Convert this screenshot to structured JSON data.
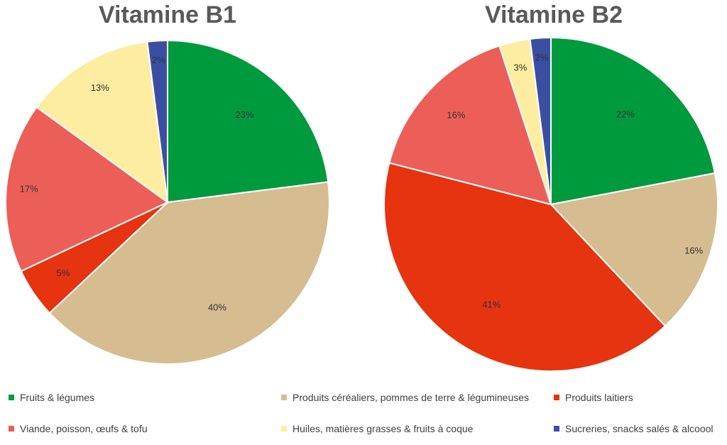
{
  "chart_data": [
    {
      "type": "pie",
      "title": "Vitamine B1",
      "categories": [
        "Fruits & légumes",
        "Produits céréaliers, pommes de terre & légumineuses",
        "Produits laitiers",
        "Viande, poisson, œufs & tofu",
        "Huiles, matières grasses & fruits à coque",
        "Sucreries, snacks salés & alcoool"
      ],
      "values": [
        23,
        40,
        5,
        17,
        13,
        2
      ],
      "labels": [
        "23%",
        "40%",
        "5%",
        "17%",
        "13%",
        "2%"
      ],
      "colors": [
        "#009a3e",
        "#d5bd91",
        "#e5340f",
        "#eb5f58",
        "#fdeda0",
        "#3b4fa2"
      ],
      "legend": "bottom"
    },
    {
      "type": "pie",
      "title": "Vitamine B2",
      "categories": [
        "Fruits & légumes",
        "Produits céréaliers, pommes de terre & légumineuses",
        "Produits laitiers",
        "Viande, poisson, œufs & tofu",
        "Huiles, matières grasses & fruits à coque",
        "Sucreries, snacks salés & alcoool"
      ],
      "values": [
        22,
        16,
        41,
        16,
        3,
        2
      ],
      "labels": [
        "22%",
        "16%",
        "41%",
        "16%",
        "3%",
        "2%"
      ],
      "colors": [
        "#009a3e",
        "#d5bd91",
        "#e5340f",
        "#eb5f58",
        "#fdeda0",
        "#3b4fa2"
      ],
      "legend": "bottom"
    }
  ],
  "legend": [
    {
      "label": "Fruits & légumes",
      "color": "#009a3e"
    },
    {
      "label": "Produits céréaliers, pommes de terre & légumineuses",
      "color": "#d5bd91"
    },
    {
      "label": "Produits laitiers",
      "color": "#e5340f"
    },
    {
      "label": "Viande, poisson, œufs & tofu",
      "color": "#eb5f58"
    },
    {
      "label": "Huiles, matières grasses & fruits à coque",
      "color": "#fdeda0"
    },
    {
      "label": "Sucreries, snacks salés & alcoool",
      "color": "#3b4fa2"
    }
  ]
}
